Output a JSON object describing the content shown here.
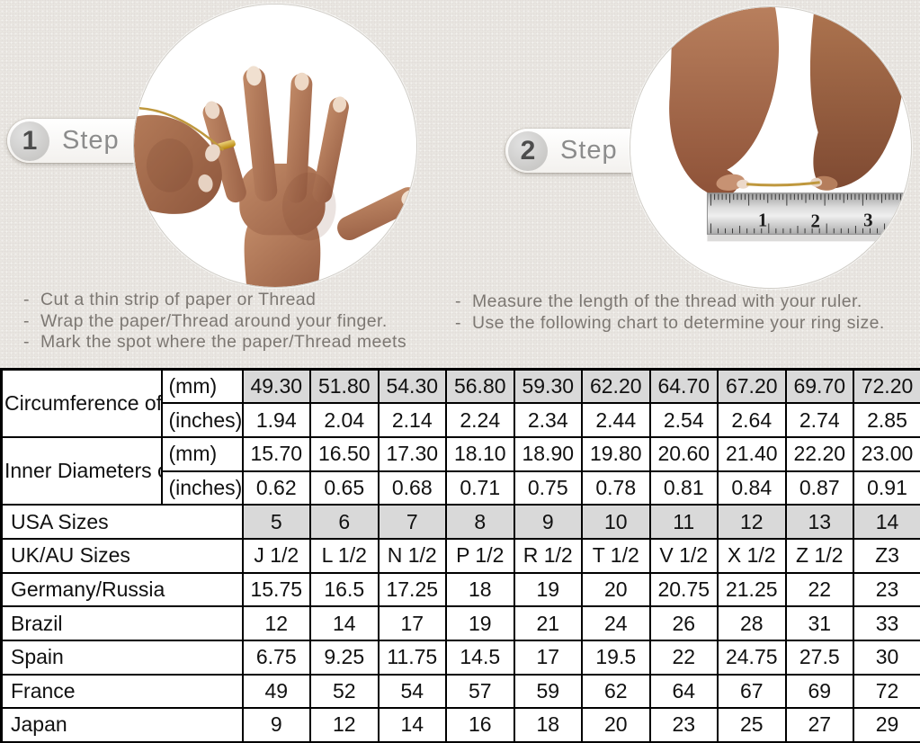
{
  "colors": {
    "background": "#e9e6e1",
    "table_shaded_cell": "#d9d9d9",
    "table_border": "#000000",
    "step_text": "#8c8c8c",
    "instruction_text": "#7c7772",
    "thread_gold": "#bf983e"
  },
  "steps": [
    {
      "number": "1",
      "label": "Step",
      "photo_alt": "hand-with-ring-being-wrapped-with-thread",
      "instructions": [
        "Cut a thin strip of paper or Thread",
        "Wrap the paper/Thread around your finger.",
        "Mark the spot where the paper/Thread meets"
      ]
    },
    {
      "number": "2",
      "label": "Step",
      "photo_alt": "hands-measuring-thread-length-on-ruler",
      "instructions": [
        "Measure the length of the thread with your ruler.",
        "Use the following chart to determine your ring size."
      ]
    }
  ],
  "ruler": {
    "numbers": [
      "1",
      "2",
      "3"
    ]
  },
  "chart_data": {
    "type": "table",
    "row_groups": [
      {
        "label": "Circumference of Your Finger",
        "rows": [
          {
            "unit": "(mm)",
            "shaded": true,
            "values": [
              "49.30",
              "51.80",
              "54.30",
              "56.80",
              "59.30",
              "62.20",
              "64.70",
              "67.20",
              "69.70",
              "72.20"
            ]
          },
          {
            "unit": "(inches)",
            "shaded": false,
            "values": [
              "1.94",
              "2.04",
              "2.14",
              "2.24",
              "2.34",
              "2.44",
              "2.54",
              "2.64",
              "2.74",
              "2.85"
            ]
          }
        ]
      },
      {
        "label": "Inner Diameters of Rings",
        "rows": [
          {
            "unit": "(mm)",
            "shaded": false,
            "values": [
              "15.70",
              "16.50",
              "17.30",
              "18.10",
              "18.90",
              "19.80",
              "20.60",
              "21.40",
              "22.20",
              "23.00"
            ]
          },
          {
            "unit": "(inches)",
            "shaded": false,
            "values": [
              "0.62",
              "0.65",
              "0.68",
              "0.71",
              "0.75",
              "0.78",
              "0.81",
              "0.84",
              "0.87",
              "0.91"
            ]
          }
        ]
      }
    ],
    "rows": [
      {
        "label": "USA Sizes",
        "shaded": true,
        "values": [
          "5",
          "6",
          "7",
          "8",
          "9",
          "10",
          "11",
          "12",
          "13",
          "14"
        ]
      },
      {
        "label": "UK/AU Sizes",
        "shaded": false,
        "values": [
          "J 1/2",
          "L 1/2",
          "N 1/2",
          "P 1/2",
          "R 1/2",
          "T 1/2",
          "V 1/2",
          "X 1/2",
          "Z 1/2",
          "Z3"
        ]
      },
      {
        "label": "Germany/Russia",
        "shaded": false,
        "values": [
          "15.75",
          "16.5",
          "17.25",
          "18",
          "19",
          "20",
          "20.75",
          "21.25",
          "22",
          "23"
        ]
      },
      {
        "label": "Brazil",
        "shaded": false,
        "values": [
          "12",
          "14",
          "17",
          "19",
          "21",
          "24",
          "26",
          "28",
          "31",
          "33"
        ]
      },
      {
        "label": "Spain",
        "shaded": false,
        "values": [
          "6.75",
          "9.25",
          "11.75",
          "14.5",
          "17",
          "19.5",
          "22",
          "24.75",
          "27.5",
          "30"
        ]
      },
      {
        "label": "France",
        "shaded": false,
        "values": [
          "49",
          "52",
          "54",
          "57",
          "59",
          "62",
          "64",
          "67",
          "69",
          "72"
        ]
      },
      {
        "label": "Japan",
        "shaded": false,
        "values": [
          "9",
          "12",
          "14",
          "16",
          "18",
          "20",
          "23",
          "25",
          "27",
          "29"
        ]
      }
    ]
  }
}
